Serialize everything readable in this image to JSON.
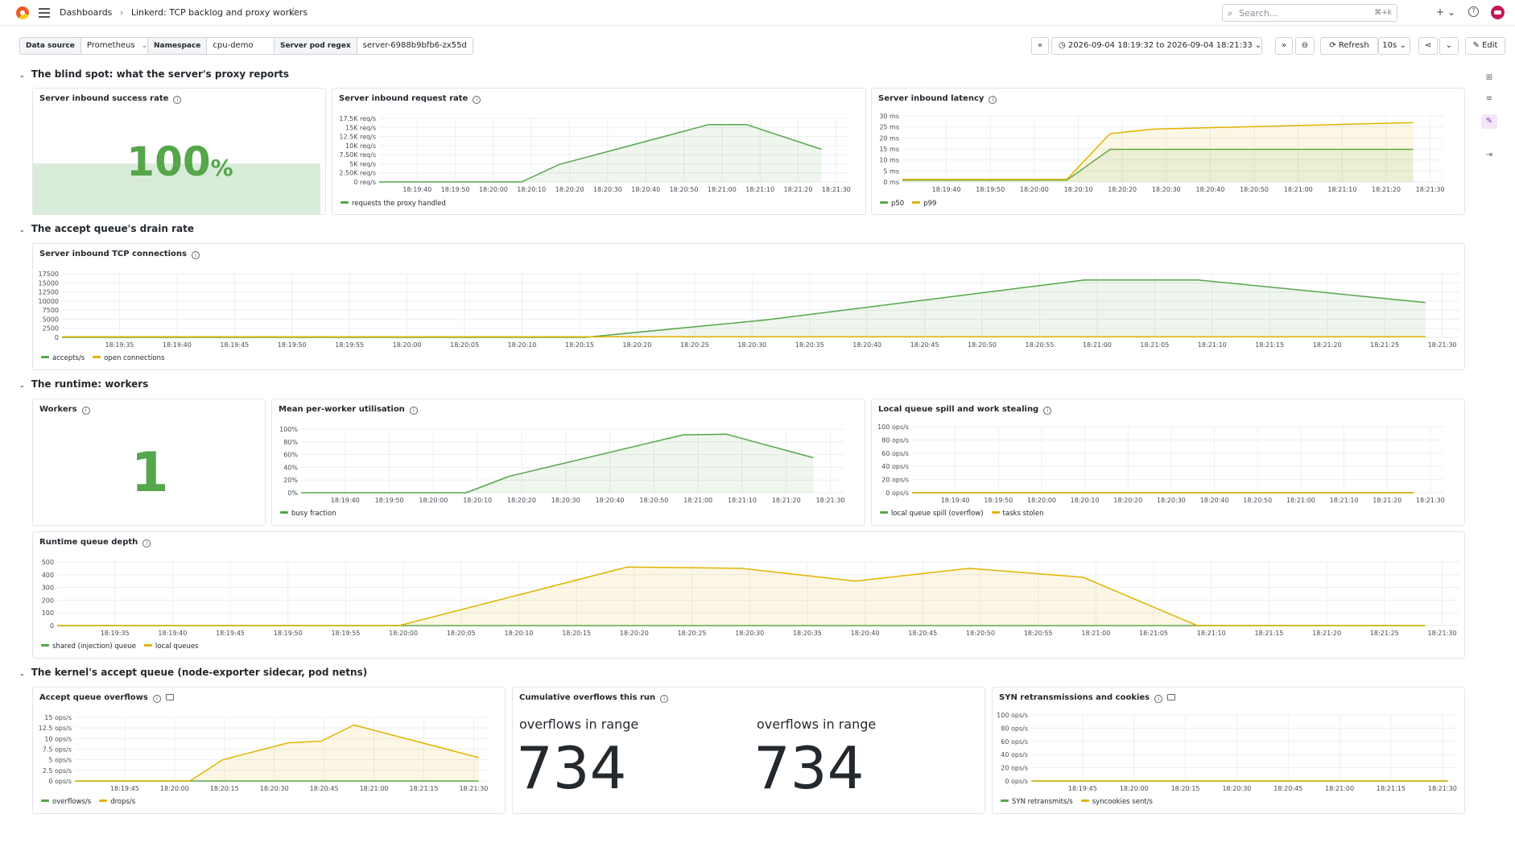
{
  "topbar": {
    "breadcrumb_root": "Dashboards",
    "breadcrumb_sep": "›",
    "breadcrumb_current": "Linkerd: TCP backlog and proxy workers",
    "search_placeholder": "Search...",
    "search_shortcut": "⌘+k",
    "plus_label": "+ ⌄"
  },
  "variables": [
    {
      "label": "Data source",
      "value": "Prometheus"
    },
    {
      "label": "Namespace",
      "value": "cpu-demo"
    },
    {
      "label": "Server pod regex",
      "value": "server-6988b9bfb6-zx55d"
    }
  ],
  "toolbar": {
    "time_range": "2026-09-04 18:19:32 to 2026-09-04 18:21:33",
    "refresh_label": "Refresh",
    "refresh_interval": "10s",
    "edit_label": "Edit"
  },
  "rows": {
    "r1": "The blind spot: what the server's proxy reports",
    "r2": "The accept queue's drain rate",
    "r3": "The runtime: workers",
    "r4": "The kernel's accept queue (node-exporter sidecar, pod netns)"
  },
  "colors": {
    "green": "#56a64b",
    "yellow": "#e0b400",
    "grid": "#eceef0"
  },
  "panels": {
    "success": {
      "title": "Server inbound success rate",
      "value": "100",
      "unit": "%"
    },
    "reqrate": {
      "title": "Server inbound request rate",
      "legend": [
        "requests the proxy handled"
      ]
    },
    "latency": {
      "title": "Server inbound latency",
      "legend": [
        "p50",
        "p99"
      ]
    },
    "tcp": {
      "title": "Server inbound TCP connections",
      "legend": [
        "accepts/s",
        "open connections"
      ]
    },
    "workers": {
      "title": "Workers",
      "value": "1"
    },
    "util": {
      "title": "Mean per-worker utilisation",
      "legend": [
        "busy fraction"
      ]
    },
    "spill": {
      "title": "Local queue spill and work stealing",
      "legend": [
        "local queue spill (overflow)",
        "tasks stolen"
      ]
    },
    "qdepth": {
      "title": "Runtime queue depth",
      "legend": [
        "shared (injection) queue",
        "local queues"
      ]
    },
    "overflows": {
      "title": "Accept queue overflows",
      "legend": [
        "overflows/s",
        "drops/s"
      ]
    },
    "cumul": {
      "title": "Cumulative overflows this run",
      "label_a": "overflows in range",
      "value_a": "734",
      "label_b": "overflows in range",
      "value_b": "734"
    },
    "syn": {
      "title": "SYN retransmissions and cookies",
      "legend": [
        "SYN retransmits/s",
        "syncookies sent/s"
      ]
    }
  },
  "chart_data": [
    {
      "id": "reqrate",
      "type": "area",
      "title": "Server inbound request rate",
      "yticks": [
        "0 req/s",
        "2.50K req/s",
        "5K req/s",
        "7.50K req/s",
        "10K req/s",
        "12.5K req/s",
        "15K req/s",
        "17.5K req/s"
      ],
      "ylim": [
        0,
        17500
      ],
      "xticks": [
        "18:19:40",
        "18:19:50",
        "18:20:00",
        "18:20:10",
        "18:20:20",
        "18:20:30",
        "18:20:40",
        "18:20:50",
        "18:21:00",
        "18:21:10",
        "18:21:20",
        "18:21:30"
      ],
      "xlim": [
        0,
        125
      ],
      "series": [
        {
          "name": "requests the proxy handled",
          "color": "#56a64b",
          "x": [
            0,
            38,
            48,
            88,
            98,
            118
          ],
          "y": [
            0,
            0,
            4800,
            15800,
            15800,
            9000
          ]
        }
      ]
    },
    {
      "id": "latency",
      "type": "area",
      "title": "Server inbound latency",
      "yticks": [
        "0 ms",
        "5 ms",
        "10 ms",
        "15 ms",
        "20 ms",
        "25 ms",
        "30 ms"
      ],
      "ylim": [
        0,
        30
      ],
      "xticks": [
        "18:19:40",
        "18:19:50",
        "18:20:00",
        "18:20:10",
        "18:20:20",
        "18:20:30",
        "18:20:40",
        "18:20:50",
        "18:21:00",
        "18:21:10",
        "18:21:20",
        "18:21:30"
      ],
      "xlim": [
        0,
        125
      ],
      "series": [
        {
          "name": "p50",
          "color": "#56a64b",
          "x": [
            0,
            38,
            48,
            118
          ],
          "y": [
            0.8,
            0.8,
            14.8,
            14.8
          ]
        },
        {
          "name": "p99",
          "color": "#e0b400",
          "x": [
            0,
            38,
            48,
            58,
            118
          ],
          "y": [
            1.2,
            1.2,
            22,
            24,
            27
          ]
        }
      ]
    },
    {
      "id": "tcp",
      "type": "area",
      "title": "Server inbound TCP connections",
      "yticks": [
        "0",
        "2500",
        "5000",
        "7500",
        "10000",
        "12500",
        "15000",
        "17500"
      ],
      "ylim": [
        0,
        17500
      ],
      "xticks": [
        "18:19:35",
        "18:19:40",
        "18:19:45",
        "18:19:50",
        "18:19:55",
        "18:20:00",
        "18:20:05",
        "18:20:10",
        "18:20:15",
        "18:20:20",
        "18:20:25",
        "18:20:30",
        "18:20:35",
        "18:20:40",
        "18:20:45",
        "18:20:50",
        "18:20:55",
        "18:21:00",
        "18:21:05",
        "18:21:10",
        "18:21:15",
        "18:21:20",
        "18:21:25",
        "18:21:30"
      ],
      "xlim": [
        -2,
        121
      ],
      "series": [
        {
          "name": "accepts/s",
          "color": "#56a64b",
          "x": [
            -2,
            44,
            60,
            88,
            98,
            118
          ],
          "y": [
            0,
            0,
            4800,
            15800,
            15800,
            9600
          ]
        },
        {
          "name": "open connections",
          "color": "#e0b400",
          "x": [
            -2,
            118
          ],
          "y": [
            150,
            150
          ]
        }
      ]
    },
    {
      "id": "util",
      "type": "area",
      "title": "Mean per-worker utilisation",
      "yticks": [
        "0%",
        "20%",
        "40%",
        "60%",
        "80%",
        "100%"
      ],
      "ylim": [
        0,
        100
      ],
      "xticks": [
        "18:19:40",
        "18:19:50",
        "18:20:00",
        "18:20:10",
        "18:20:20",
        "18:20:30",
        "18:20:40",
        "18:20:50",
        "18:21:00",
        "18:21:10",
        "18:21:20",
        "18:21:30"
      ],
      "xlim": [
        0,
        125
      ],
      "series": [
        {
          "name": "busy fraction",
          "color": "#56a64b",
          "x": [
            0,
            38,
            48,
            88,
            98,
            118
          ],
          "y": [
            0,
            0,
            26,
            91,
            92,
            55
          ]
        }
      ]
    },
    {
      "id": "spill",
      "type": "line",
      "title": "Local queue spill and work stealing",
      "yticks": [
        "0 ops/s",
        "20 ops/s",
        "40 ops/s",
        "60 ops/s",
        "80 ops/s",
        "100 ops/s"
      ],
      "ylim": [
        0,
        100
      ],
      "xticks": [
        "18:19:40",
        "18:19:50",
        "18:20:00",
        "18:20:10",
        "18:20:20",
        "18:20:30",
        "18:20:40",
        "18:20:50",
        "18:21:00",
        "18:21:10",
        "18:21:20",
        "18:21:30"
      ],
      "xlim": [
        0,
        125
      ],
      "series": [
        {
          "name": "local queue spill (overflow)",
          "color": "#56a64b",
          "x": [
            0,
            118
          ],
          "y": [
            0,
            0
          ]
        },
        {
          "name": "tasks stolen",
          "color": "#e0b400",
          "x": [
            0,
            118
          ],
          "y": [
            0,
            0
          ]
        }
      ]
    },
    {
      "id": "qdepth",
      "type": "area",
      "title": "Runtime queue depth",
      "yticks": [
        "0",
        "100",
        "200",
        "300",
        "400",
        "500"
      ],
      "ylim": [
        0,
        500
      ],
      "xticks": [
        "18:19:35",
        "18:19:40",
        "18:19:45",
        "18:19:50",
        "18:19:55",
        "18:20:00",
        "18:20:05",
        "18:20:10",
        "18:20:15",
        "18:20:20",
        "18:20:25",
        "18:20:30",
        "18:20:35",
        "18:20:40",
        "18:20:45",
        "18:20:50",
        "18:20:55",
        "18:21:00",
        "18:21:05",
        "18:21:10",
        "18:21:15",
        "18:21:20",
        "18:21:25",
        "18:21:30"
      ],
      "xlim": [
        -2,
        121
      ],
      "series": [
        {
          "name": "shared (injection) queue",
          "color": "#56a64b",
          "x": [
            -2,
            118
          ],
          "y": [
            0,
            0
          ]
        },
        {
          "name": "local queues",
          "color": "#e0b400",
          "x": [
            -2,
            28,
            48,
            58,
            68,
            78,
            88,
            98,
            108,
            118
          ],
          "y": [
            0,
            0,
            460,
            450,
            350,
            450,
            380,
            0,
            0,
            0
          ]
        }
      ]
    },
    {
      "id": "overflows",
      "type": "area",
      "title": "Accept queue overflows",
      "yticks": [
        "0 ops/s",
        "2.5 ops/s",
        "5 ops/s",
        "7.5 ops/s",
        "10 ops/s",
        "12.5 ops/s",
        "15 ops/s"
      ],
      "ylim": [
        0,
        15
      ],
      "xticks": [
        "18:19:45",
        "18:20:00",
        "18:20:15",
        "18:20:30",
        "18:20:45",
        "18:21:00",
        "18:21:15",
        "18:21:30"
      ],
      "xlim": [
        -5,
        121
      ],
      "series": [
        {
          "name": "overflows/s",
          "color": "#56a64b",
          "x": [
            -5,
            118
          ],
          "y": [
            0,
            0
          ]
        },
        {
          "name": "drops/s",
          "color": "#e0b400",
          "x": [
            -5,
            30,
            40,
            60,
            70,
            80,
            118
          ],
          "y": [
            0,
            0,
            5,
            9,
            9.4,
            13.2,
            5.5
          ]
        }
      ]
    },
    {
      "id": "syn",
      "type": "line",
      "title": "SYN retransmissions and cookies",
      "yticks": [
        "0 ops/s",
        "20 ops/s",
        "40 ops/s",
        "60 ops/s",
        "80 ops/s",
        "100 ops/s"
      ],
      "ylim": [
        0,
        100
      ],
      "xticks": [
        "18:19:45",
        "18:20:00",
        "18:20:15",
        "18:20:30",
        "18:20:45",
        "18:21:00",
        "18:21:15",
        "18:21:30"
      ],
      "xlim": [
        -5,
        121
      ],
      "series": [
        {
          "name": "SYN retransmits/s",
          "color": "#56a64b",
          "x": [
            -5,
            118
          ],
          "y": [
            0,
            0
          ]
        },
        {
          "name": "syncookies sent/s",
          "color": "#e0b400",
          "x": [
            -5,
            118
          ],
          "y": [
            0,
            0
          ]
        }
      ]
    }
  ]
}
